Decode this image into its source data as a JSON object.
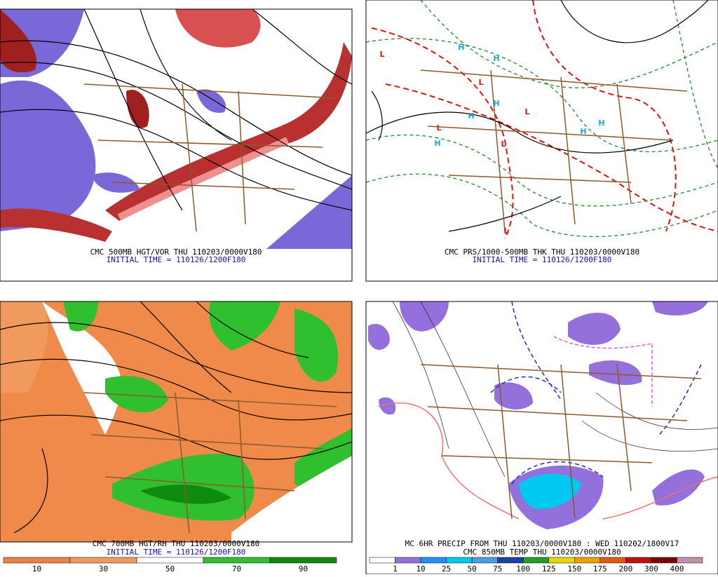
{
  "panels": [
    {
      "caption": "CMC 500MB HGT/VOR THU 110203/0000V180",
      "initial_time": "INITIAL TIME = 110126/1200F180"
    },
    {
      "caption": "CMC PRS/1000-500MB THK THU 110203/0000V180",
      "initial_time": "INITIAL TIME = 110126/1200F180"
    },
    {
      "caption": "CMC 700MB HGT/RH THU 110203/0000V180",
      "initial_time": "INITIAL TIME = 110126/1200F180"
    },
    {
      "caption": "MC 6HR PRECIP FROM THU 110203/0000V180 : WED 110202/1800V17",
      "initial_time": "CMC 850MB TEMP THU 110203/0000V180"
    }
  ],
  "pressure_centers": [
    "L",
    "H",
    "H",
    "L",
    "H",
    "L",
    "L",
    "H",
    "H",
    "L",
    "H",
    "H",
    "L"
  ],
  "center_colors": {
    "H": "#1aa6d8",
    "L": "#e01010"
  },
  "rh_legend": {
    "labels": [
      "10",
      "30",
      "50",
      "70",
      "90"
    ],
    "colors": [
      "#ee8040",
      "#f19a5e",
      "#ffffff",
      "#2fbf2f",
      "#0e8a0e"
    ]
  },
  "precip_legend": {
    "labels": [
      "1",
      "10",
      "25",
      "50",
      "75",
      "100",
      "125",
      "150",
      "175",
      "200",
      "300",
      "400"
    ],
    "colors": [
      "#ffffff",
      "#9370db",
      "#1e90ff",
      "#00c8f0",
      "#4aa0e0",
      "#1c3fa8",
      "#22a022",
      "#e8d800",
      "#f0a000",
      "#e05a10",
      "#c01010",
      "#800000",
      "#c090a8"
    ]
  }
}
